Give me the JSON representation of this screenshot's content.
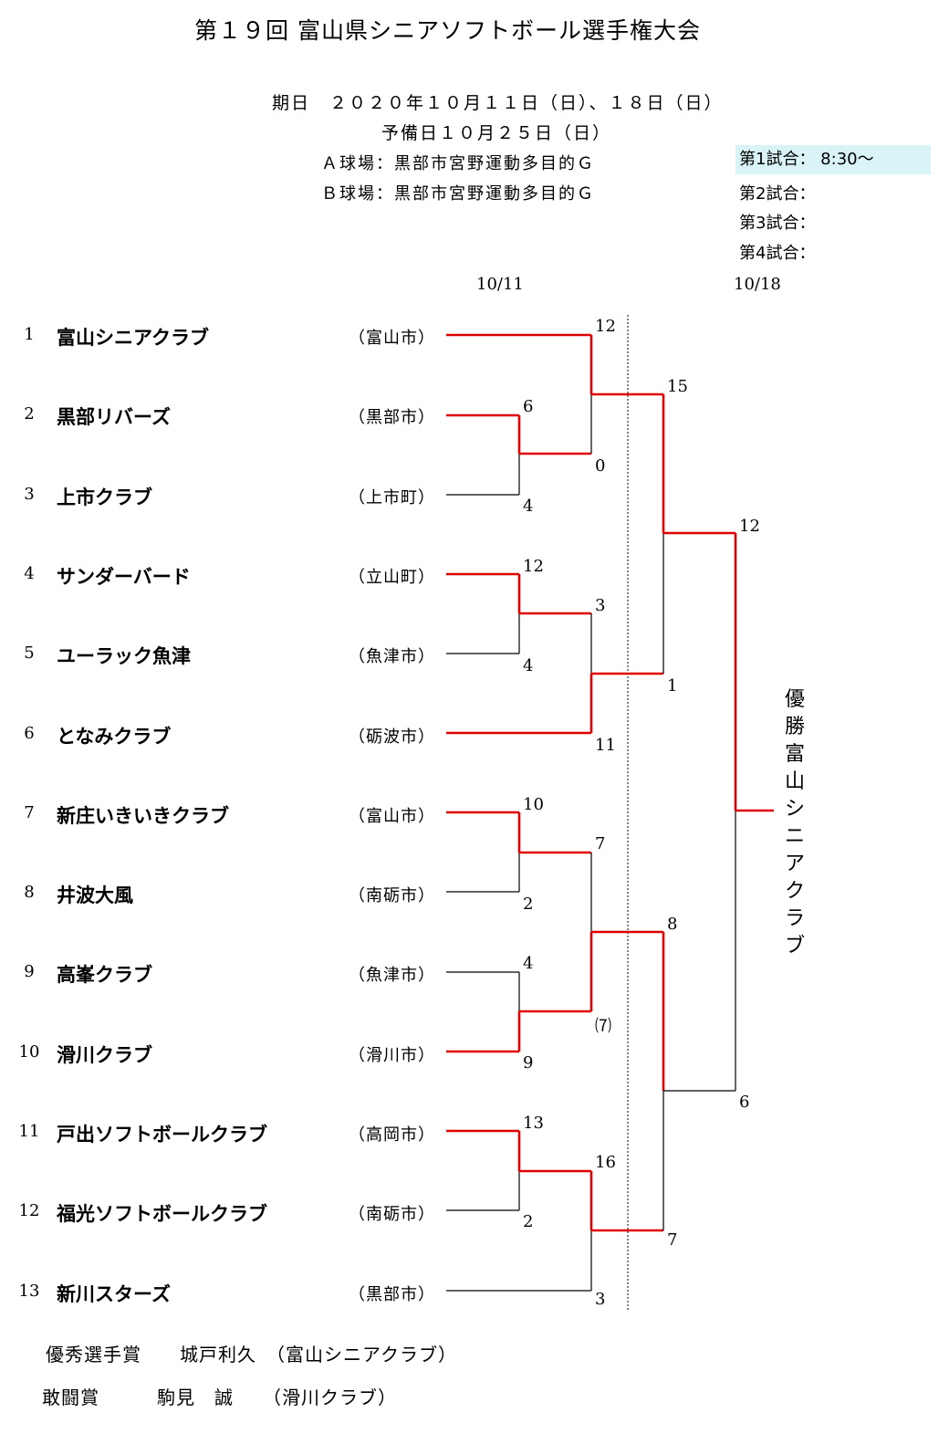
{
  "title": "第１９回 富山県シニアソフトボール選手権大会",
  "info": {
    "dates": "期日　２０２０年１０月１１日（日）、１８日（日）",
    "reserve": "予備日１０月２５日（日）",
    "field_a": "Ａ球場：黒部市宮野運動多目的Ｇ",
    "field_b": "Ｂ球場：黒部市宮野運動多目的Ｇ"
  },
  "schedule": [
    "第1試合：  8:30～",
    "第2試合：",
    "第3試合：",
    "第4試合："
  ],
  "round_dates": [
    "10/11",
    "10/18"
  ],
  "teams": [
    {
      "seed": "1",
      "name": "富山シニアクラブ",
      "city": "（富山市）"
    },
    {
      "seed": "2",
      "name": "黒部リバーズ",
      "city": "（黒部市）"
    },
    {
      "seed": "3",
      "name": "上市クラブ",
      "city": "（上市町）"
    },
    {
      "seed": "4",
      "name": "サンダーバード",
      "city": "（立山町）"
    },
    {
      "seed": "5",
      "name": "ユーラック魚津",
      "city": "（魚津市）"
    },
    {
      "seed": "6",
      "name": "となみクラブ",
      "city": "（砺波市）"
    },
    {
      "seed": "7",
      "name": "新庄いきいきクラブ",
      "city": "（富山市）"
    },
    {
      "seed": "8",
      "name": "井波大風",
      "city": "（南砺市）"
    },
    {
      "seed": "9",
      "name": "高峯クラブ",
      "city": "（魚津市）"
    },
    {
      "seed": "10",
      "name": "滑川クラブ",
      "city": "（滑川市）"
    },
    {
      "seed": "11",
      "name": "戸出ソフトボールクラブ",
      "city": "（高岡市）"
    },
    {
      "seed": "12",
      "name": "福光ソフトボールクラブ",
      "city": "（南砺市）"
    },
    {
      "seed": "13",
      "name": "新川スターズ",
      "city": "（黒部市）"
    }
  ],
  "scores": {
    "r1_2v3": [
      "6",
      "4"
    ],
    "r1_4v5": [
      "12",
      "4"
    ],
    "r1_7v8": [
      "10",
      "2"
    ],
    "r1_9v10": [
      "4",
      "9"
    ],
    "r1_11v12": [
      "13",
      "2"
    ],
    "r2_1v23": [
      "12",
      "0"
    ],
    "r2_45v6": [
      "3",
      "11"
    ],
    "r2_78v910": [
      "7",
      "⑺"
    ],
    "r2_1112v13": [
      "16",
      "3"
    ],
    "qf_top": [
      "15",
      "1"
    ],
    "qf_bottom": [
      "8",
      "7"
    ],
    "final": [
      "12",
      "6"
    ]
  },
  "champion_label": "優勝富山シニアクラブ",
  "awards": {
    "mvp": "優秀選手賞　　城戸利久　（富山シニアクラブ）",
    "fighting": "敢闘賞　　　駒見　誠　　（滑川クラブ）"
  },
  "colors": {
    "winner_line": "#e00000",
    "loser_line": "#000000",
    "highlight": "#d9f3f7"
  }
}
